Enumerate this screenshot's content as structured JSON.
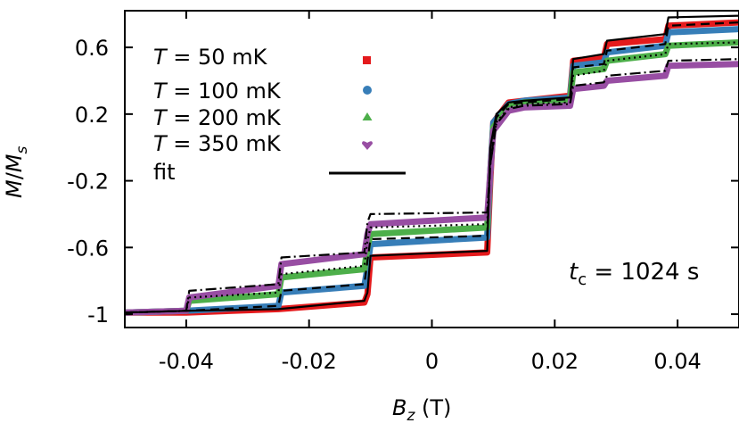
{
  "chart_data": {
    "type": "line",
    "xlabel": "B_z (T)",
    "ylabel": "M/M_s",
    "xlim": [
      -0.05,
      0.05
    ],
    "ylim": [
      -1.08,
      0.82
    ],
    "x_ticks": [
      -0.04,
      -0.02,
      0,
      0.02,
      0.04
    ],
    "x_tick_labels": [
      "-0.04",
      "-0.02",
      "0",
      "0.02",
      "0.04"
    ],
    "y_ticks": [
      0.6,
      0.2,
      -0.2,
      -0.6,
      -1
    ],
    "y_tick_labels": [
      "0.6",
      "0.2",
      "-0.2",
      "-0.6",
      "-1"
    ],
    "legend_position": "top-left",
    "annotation": {
      "symbol": "t",
      "subscript": "c",
      "text": " = 1024 s"
    },
    "legend": [
      {
        "label_prefix": "T",
        "label": " = 50 mK",
        "marker": "square",
        "color": "#e41a1c"
      },
      {
        "label_prefix": "T",
        "label": " = 100 mK",
        "marker": "circle",
        "color": "#377eb8"
      },
      {
        "label_prefix": "T",
        "label": " = 200 mK",
        "marker": "triangle",
        "color": "#4daf4a"
      },
      {
        "label_prefix": "T",
        "label": " = 350 mK",
        "marker": "heart",
        "color": "#984ea3"
      },
      {
        "label_prefix": "",
        "label": "fit",
        "marker": "line",
        "color": "#000000"
      }
    ],
    "series": [
      {
        "name": "T = 50 mK",
        "color": "#e41a1c",
        "style": "data",
        "x": [
          -0.05,
          -0.04,
          -0.025,
          -0.011,
          -0.0105,
          -0.01,
          0.009,
          0.0095,
          0.01,
          0.0125,
          0.015,
          0.0225,
          0.023,
          0.028,
          0.0285,
          0.038,
          0.0385,
          0.05
        ],
        "y": [
          -0.99,
          -0.99,
          -0.97,
          -0.93,
          -0.88,
          -0.66,
          -0.63,
          -0.2,
          0.15,
          0.27,
          0.28,
          0.31,
          0.52,
          0.54,
          0.62,
          0.65,
          0.73,
          0.75
        ]
      },
      {
        "name": "T = 100 mK",
        "color": "#377eb8",
        "style": "data",
        "x": [
          -0.05,
          -0.04,
          -0.025,
          -0.0245,
          -0.011,
          -0.0105,
          -0.01,
          0.009,
          0.0095,
          0.01,
          0.0125,
          0.015,
          0.0225,
          0.023,
          0.028,
          0.0285,
          0.038,
          0.0385,
          0.05
        ],
        "y": [
          -0.99,
          -0.98,
          -0.95,
          -0.87,
          -0.83,
          -0.72,
          -0.58,
          -0.54,
          -0.15,
          0.15,
          0.26,
          0.28,
          0.3,
          0.49,
          0.51,
          0.57,
          0.61,
          0.69,
          0.71
        ]
      },
      {
        "name": "T = 200 mK",
        "color": "#4daf4a",
        "style": "data",
        "x": [
          -0.05,
          -0.04,
          -0.0395,
          -0.025,
          -0.0245,
          -0.011,
          -0.0105,
          -0.01,
          0.009,
          0.0095,
          0.01,
          0.0125,
          0.015,
          0.0225,
          0.023,
          0.028,
          0.0285,
          0.038,
          0.0385,
          0.05
        ],
        "y": [
          -0.99,
          -0.98,
          -0.92,
          -0.88,
          -0.78,
          -0.73,
          -0.6,
          -0.52,
          -0.48,
          -0.15,
          0.12,
          0.25,
          0.27,
          0.28,
          0.45,
          0.47,
          0.52,
          0.56,
          0.61,
          0.63
        ]
      },
      {
        "name": "T = 350 mK",
        "color": "#984ea3",
        "style": "data",
        "x": [
          -0.05,
          -0.04,
          -0.0395,
          -0.025,
          -0.0245,
          -0.011,
          -0.0105,
          -0.01,
          0.009,
          0.0095,
          0.01,
          0.0125,
          0.015,
          0.0225,
          0.023,
          0.028,
          0.0285,
          0.038,
          0.0385,
          0.05
        ],
        "y": [
          -0.99,
          -0.98,
          -0.9,
          -0.83,
          -0.7,
          -0.64,
          -0.52,
          -0.46,
          -0.42,
          -0.15,
          0.1,
          0.22,
          0.24,
          0.25,
          0.35,
          0.37,
          0.4,
          0.43,
          0.49,
          0.5
        ]
      },
      {
        "name": "fit",
        "color": "#000000",
        "style": "solid",
        "x": [
          -0.05,
          -0.04,
          -0.025,
          -0.011,
          -0.0105,
          -0.01,
          0.009,
          0.0095,
          0.0105,
          0.0125,
          0.015,
          0.0225,
          0.023,
          0.028,
          0.0285,
          0.038,
          0.0385,
          0.05
        ],
        "y": [
          -0.99,
          -0.98,
          -0.97,
          -0.92,
          -0.87,
          -0.65,
          -0.62,
          0.0,
          0.2,
          0.27,
          0.28,
          0.3,
          0.53,
          0.56,
          0.64,
          0.68,
          0.78,
          0.79
        ]
      },
      {
        "name": "fit",
        "color": "#000000",
        "style": "dashed",
        "x": [
          -0.05,
          -0.04,
          -0.025,
          -0.0245,
          -0.011,
          -0.0105,
          -0.01,
          0.009,
          0.0095,
          0.0105,
          0.0125,
          0.015,
          0.0225,
          0.023,
          0.028,
          0.0285,
          0.038,
          0.0385,
          0.05
        ],
        "y": [
          -0.99,
          -0.98,
          -0.95,
          -0.86,
          -0.82,
          -0.68,
          -0.55,
          -0.53,
          -0.1,
          0.18,
          0.26,
          0.27,
          0.29,
          0.48,
          0.5,
          0.58,
          0.62,
          0.73,
          0.75
        ]
      },
      {
        "name": "fit",
        "color": "#000000",
        "style": "dotted",
        "x": [
          -0.05,
          -0.04,
          -0.0395,
          -0.025,
          -0.0245,
          -0.011,
          -0.0105,
          -0.01,
          0.009,
          0.0095,
          0.0105,
          0.0125,
          0.015,
          0.0225,
          0.023,
          0.028,
          0.0285,
          0.038,
          0.0385,
          0.05
        ],
        "y": [
          -0.99,
          -0.98,
          -0.9,
          -0.87,
          -0.76,
          -0.71,
          -0.56,
          -0.48,
          -0.46,
          -0.1,
          0.15,
          0.24,
          0.26,
          0.27,
          0.43,
          0.46,
          0.52,
          0.56,
          0.62,
          0.63
        ]
      },
      {
        "name": "fit",
        "color": "#000000",
        "style": "dashdot",
        "x": [
          -0.05,
          -0.04,
          -0.0395,
          -0.025,
          -0.0245,
          -0.011,
          -0.0105,
          -0.01,
          0.009,
          0.0095,
          0.0105,
          0.0125,
          0.015,
          0.0225,
          0.023,
          0.028,
          0.0285,
          0.038,
          0.0385,
          0.05
        ],
        "y": [
          -0.99,
          -0.98,
          -0.86,
          -0.82,
          -0.66,
          -0.63,
          -0.45,
          -0.4,
          -0.39,
          -0.1,
          0.14,
          0.23,
          0.25,
          0.26,
          0.37,
          0.39,
          0.43,
          0.46,
          0.52,
          0.53
        ]
      }
    ]
  }
}
